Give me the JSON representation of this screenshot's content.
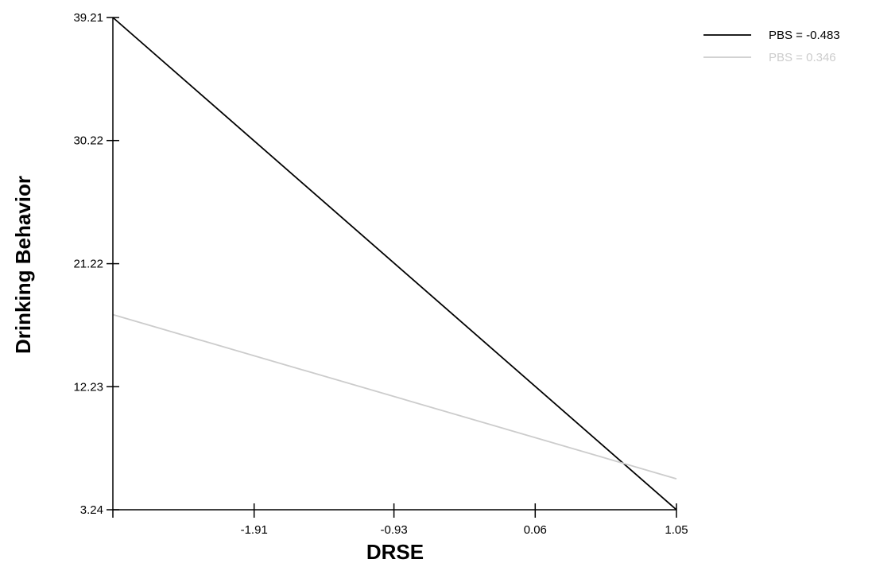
{
  "chart_data": {
    "type": "line",
    "xlabel": "DRSE",
    "ylabel": "Drinking Behavior",
    "xlim": [
      -2.9,
      1.05
    ],
    "ylim": [
      3.24,
      39.21
    ],
    "xticks": [
      -1.91,
      -0.93,
      0.06,
      1.05
    ],
    "xtick_labels": [
      "-1.91",
      "-0.93",
      "0.06",
      "1.05"
    ],
    "yticks": [
      3.24,
      12.23,
      21.22,
      30.22,
      39.21
    ],
    "ytick_labels": [
      "3.24",
      "12.23",
      "21.22",
      "30.22",
      "39.21"
    ],
    "legend_position": "top-right",
    "grid": false,
    "series": [
      {
        "name": "PBS = -0.483",
        "color": "#000000",
        "x": [
          -2.9,
          1.05
        ],
        "y": [
          39.21,
          3.24
        ]
      },
      {
        "name": "PBS = 0.346",
        "color": "#cccccc",
        "x": [
          -2.9,
          1.05
        ],
        "y": [
          17.5,
          5.5
        ]
      }
    ]
  }
}
